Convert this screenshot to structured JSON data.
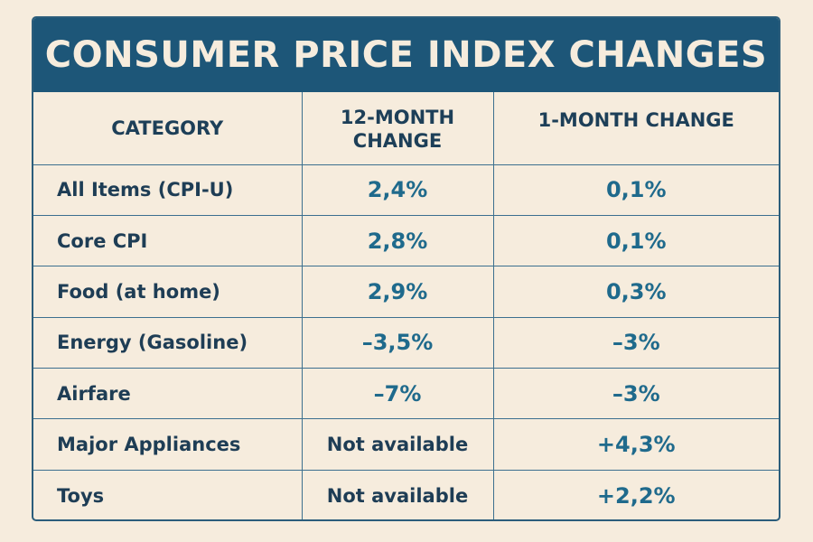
{
  "title": "CONSUMER PRICE INDEX CHANGES",
  "colors": {
    "background": "#f6ecdd",
    "title_bar": "#1d5678",
    "value_text": "#1f6a8c",
    "label_text": "#1e3d55",
    "grid": "#3c6f8f"
  },
  "chart_data": {
    "type": "table",
    "title": "CONSUMER PRICE INDEX CHANGES",
    "columns": [
      "CATEGORY",
      "12-MONTH CHANGE",
      "1-MONTH CHANGE"
    ],
    "rows": [
      {
        "category": "All Items (CPI-U)",
        "twelve_month": "2,4%",
        "one_month": "0,1%"
      },
      {
        "category": "Core CPI",
        "twelve_month": "2,8%",
        "one_month": "0,1%"
      },
      {
        "category": "Food (at home)",
        "twelve_month": "2,9%",
        "one_month": "0,3%"
      },
      {
        "category": "Energy (Gasoline)",
        "twelve_month": "–3,5%",
        "one_month": "–3%"
      },
      {
        "category": "Airfare",
        "twelve_month": "–7%",
        "one_month": "–3%"
      },
      {
        "category": "Major Appliances",
        "twelve_month": "Not available",
        "one_month": "+4,3%"
      },
      {
        "category": "Toys",
        "twelve_month": "Not available",
        "one_month": "+2,2%"
      }
    ]
  }
}
